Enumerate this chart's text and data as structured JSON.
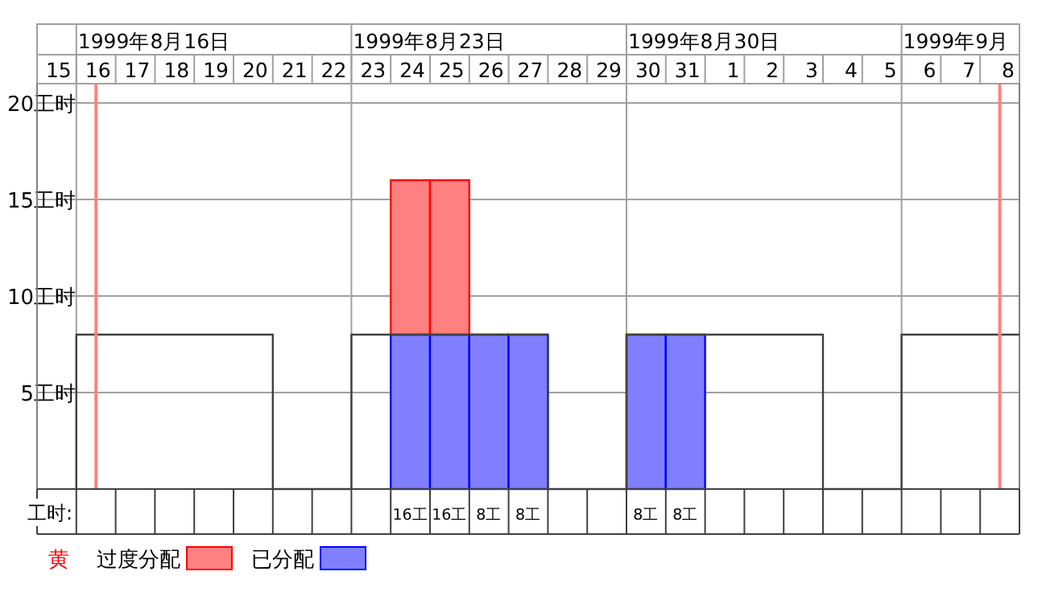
{
  "chart_data": {
    "type": "bar",
    "stacked": true,
    "categories": [
      "15",
      "16",
      "17",
      "18",
      "19",
      "20",
      "21",
      "22",
      "23",
      "24",
      "25",
      "26",
      "27",
      "28",
      "29",
      "30",
      "31",
      "1",
      "2",
      "3",
      "4",
      "5",
      "6",
      "7",
      "8"
    ],
    "series": [
      {
        "name": "已分配",
        "color": "#8080ff",
        "values": [
          0,
          0,
          0,
          0,
          0,
          0,
          0,
          0,
          0,
          8,
          8,
          8,
          8,
          0,
          0,
          8,
          8,
          0,
          0,
          0,
          0,
          0,
          0,
          0,
          0
        ]
      },
      {
        "name": "过度分配",
        "color": "#ff8080",
        "values": [
          0,
          0,
          0,
          0,
          0,
          0,
          0,
          0,
          0,
          8,
          8,
          0,
          0,
          0,
          0,
          0,
          0,
          0,
          0,
          0,
          0,
          0,
          0,
          0,
          0
        ]
      },
      {
        "type": "step",
        "color": "#404040",
        "values": [
          0,
          8,
          8,
          8,
          8,
          8,
          0,
          0,
          8,
          8,
          8,
          8,
          8,
          0,
          0,
          8,
          8,
          8,
          8,
          8,
          0,
          0,
          8,
          8,
          8
        ]
      }
    ],
    "ylim": [
      0,
      21
    ],
    "yticks": [
      {
        "value": 5,
        "label": "5工时"
      },
      {
        "value": 10,
        "label": "10工时"
      },
      {
        "value": 15,
        "label": "15工时"
      },
      {
        "value": 20,
        "label": "20工时"
      }
    ],
    "grid": "y",
    "totals": [
      null,
      null,
      null,
      null,
      null,
      null,
      null,
      null,
      null,
      "16工",
      "16工",
      "8工",
      "8工",
      null,
      null,
      "8工",
      "8工",
      null,
      null,
      null,
      null,
      null,
      null,
      null,
      null
    ],
    "annotations": [
      "1999年8月16日",
      "1999年8月23日",
      "1999年8月30日",
      "1999年9月",
      "工时:"
    ],
    "ref_lines": [
      {
        "axis": "x",
        "value": "16",
        "color": "#ff8080"
      },
      {
        "axis": "x",
        "value": "8",
        "color": "#ff8080"
      }
    ],
    "legend": "bottom",
    "legend_title": "黄"
  }
}
